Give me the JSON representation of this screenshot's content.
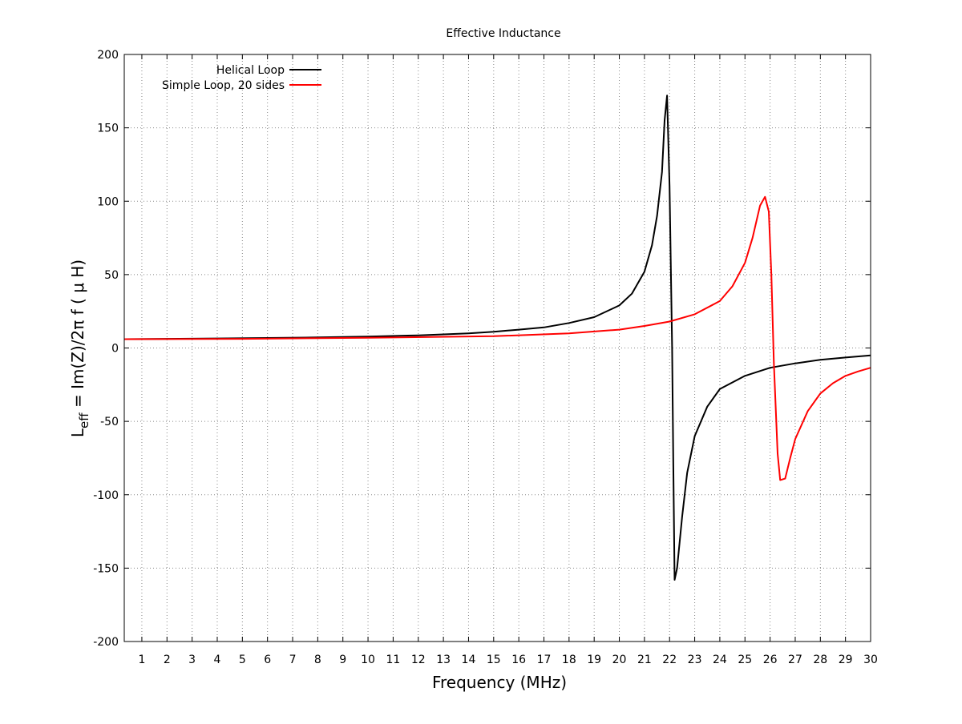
{
  "chart_data": {
    "type": "line",
    "title": "Effective Inductance",
    "xlabel": "Frequency (MHz)",
    "ylabel_main": "L",
    "ylabel_sub": "eff",
    "ylabel_rest": " = Im(Z)/2π f (  μ H)",
    "xlim": [
      0.3,
      30
    ],
    "ylim": [
      -200,
      200
    ],
    "xticks": [
      1,
      2,
      3,
      4,
      5,
      6,
      7,
      8,
      9,
      10,
      11,
      12,
      13,
      14,
      15,
      16,
      17,
      18,
      19,
      20,
      21,
      22,
      23,
      24,
      25,
      26,
      27,
      28,
      29,
      30
    ],
    "yticks": [
      -200,
      -150,
      -100,
      -50,
      0,
      50,
      100,
      150,
      200
    ],
    "grid": true,
    "legend_position": "top-left",
    "series": [
      {
        "name": "Helical Loop",
        "color": "#000000",
        "points": [
          [
            0.3,
            6
          ],
          [
            2,
            6.2
          ],
          [
            4,
            6.5
          ],
          [
            6,
            6.8
          ],
          [
            8,
            7.2
          ],
          [
            10,
            7.8
          ],
          [
            12,
            8.6
          ],
          [
            14,
            10
          ],
          [
            15,
            11
          ],
          [
            16,
            12.5
          ],
          [
            17,
            14
          ],
          [
            18,
            17
          ],
          [
            19,
            21
          ],
          [
            20,
            29
          ],
          [
            20.5,
            37
          ],
          [
            21,
            52
          ],
          [
            21.3,
            70
          ],
          [
            21.5,
            90
          ],
          [
            21.7,
            120
          ],
          [
            21.8,
            155
          ],
          [
            21.9,
            172
          ],
          [
            22.0,
            110
          ],
          [
            22.1,
            0
          ],
          [
            22.15,
            -80
          ],
          [
            22.2,
            -158
          ],
          [
            22.3,
            -150
          ],
          [
            22.5,
            -115
          ],
          [
            22.7,
            -85
          ],
          [
            23,
            -60
          ],
          [
            23.5,
            -40
          ],
          [
            24,
            -28
          ],
          [
            25,
            -19
          ],
          [
            26,
            -13.5
          ],
          [
            27,
            -10.5
          ],
          [
            28,
            -8
          ],
          [
            29,
            -6.5
          ],
          [
            30,
            -5
          ]
        ]
      },
      {
        "name": "Simple Loop, 20 sides",
        "color": "#ff0000",
        "points": [
          [
            0.3,
            6
          ],
          [
            5,
            6.2
          ],
          [
            10,
            7
          ],
          [
            15,
            8
          ],
          [
            18,
            10
          ],
          [
            20,
            12.5
          ],
          [
            21,
            15
          ],
          [
            22,
            18
          ],
          [
            23,
            23
          ],
          [
            24,
            32
          ],
          [
            24.5,
            42
          ],
          [
            25,
            58
          ],
          [
            25.3,
            75
          ],
          [
            25.6,
            97
          ],
          [
            25.8,
            103
          ],
          [
            25.95,
            93
          ],
          [
            26.05,
            50
          ],
          [
            26.15,
            -10
          ],
          [
            26.3,
            -72
          ],
          [
            26.4,
            -90
          ],
          [
            26.6,
            -89
          ],
          [
            26.8,
            -75
          ],
          [
            27,
            -62
          ],
          [
            27.5,
            -43
          ],
          [
            28,
            -31
          ],
          [
            28.5,
            -24
          ],
          [
            29,
            -19
          ],
          [
            29.5,
            -16
          ],
          [
            30,
            -13.5
          ]
        ]
      }
    ]
  }
}
